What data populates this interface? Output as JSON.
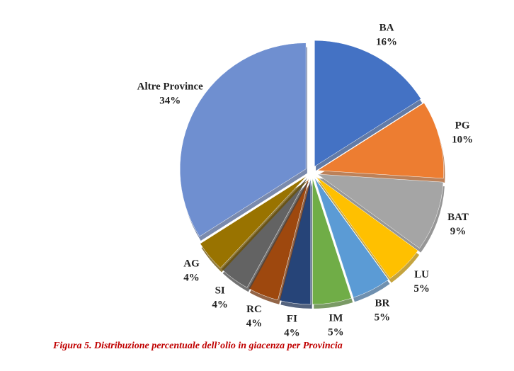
{
  "chart_data": {
    "type": "pie",
    "categories": [
      "BA",
      "PG",
      "BAT",
      "LU",
      "BR",
      "IM",
      "FI",
      "RC",
      "SI",
      "AG",
      "Altre Province"
    ],
    "values": [
      16,
      10,
      9,
      5,
      5,
      5,
      4,
      4,
      4,
      4,
      34
    ],
    "value_labels": [
      "16%",
      "10%",
      "9%",
      "5%",
      "5%",
      "5%",
      "4%",
      "4%",
      "4%",
      "4%",
      "34%"
    ],
    "colors": [
      "#4472c4",
      "#ed7d31",
      "#a5a5a5",
      "#ffc000",
      "#5b9bd5",
      "#70ad47",
      "#264478",
      "#9e480e",
      "#636363",
      "#997300",
      "#6f8fd0"
    ],
    "caption": "Figura 5. Distribuzione percentuale dell’olio in giacenza per Provincia"
  }
}
